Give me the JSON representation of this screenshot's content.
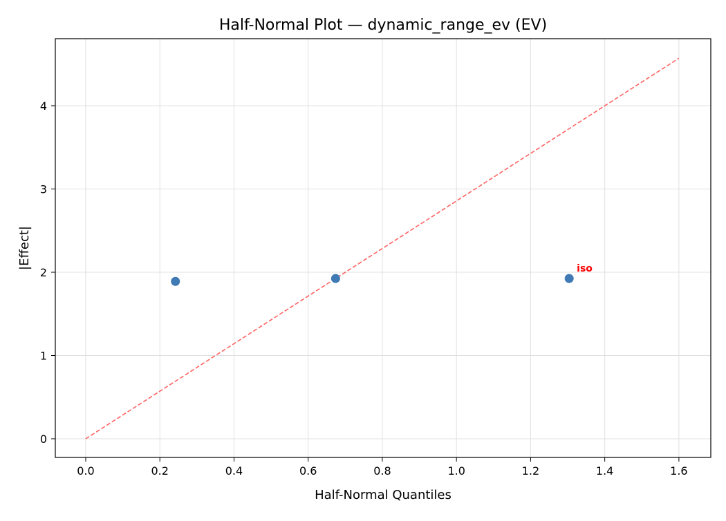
{
  "chart_data": {
    "type": "scatter",
    "title": "Half-Normal Plot — dynamic_range_ev (EV)",
    "xlabel": "Half-Normal Quantiles",
    "ylabel": "|Effect|",
    "xlim": [
      -0.082,
      1.686
    ],
    "ylim": [
      -0.224,
      4.805
    ],
    "xticks": [
      0.0,
      0.2,
      0.4,
      0.6,
      0.8,
      1.0,
      1.2,
      1.4,
      1.6
    ],
    "xtick_labels": [
      "0.0",
      "0.2",
      "0.4",
      "0.6",
      "0.8",
      "1.0",
      "1.2",
      "1.4",
      "1.6"
    ],
    "yticks": [
      0,
      1,
      2,
      3,
      4
    ],
    "ytick_labels": [
      "0",
      "1",
      "2",
      "3",
      "4"
    ],
    "grid": true,
    "points": [
      {
        "x": 0.242,
        "y": 1.89,
        "label": ""
      },
      {
        "x": 0.674,
        "y": 1.925,
        "label": ""
      },
      {
        "x": 1.304,
        "y": 1.925,
        "label": "iso"
      }
    ],
    "reference_line": {
      "x": [
        0.0,
        1.6
      ],
      "y": [
        0.0,
        4.57
      ],
      "style": "dashed"
    },
    "colors": {
      "points": "#3f7ab4",
      "line": "#ff6161",
      "label": "#ff0000",
      "grid": "#e0e0e0"
    }
  }
}
